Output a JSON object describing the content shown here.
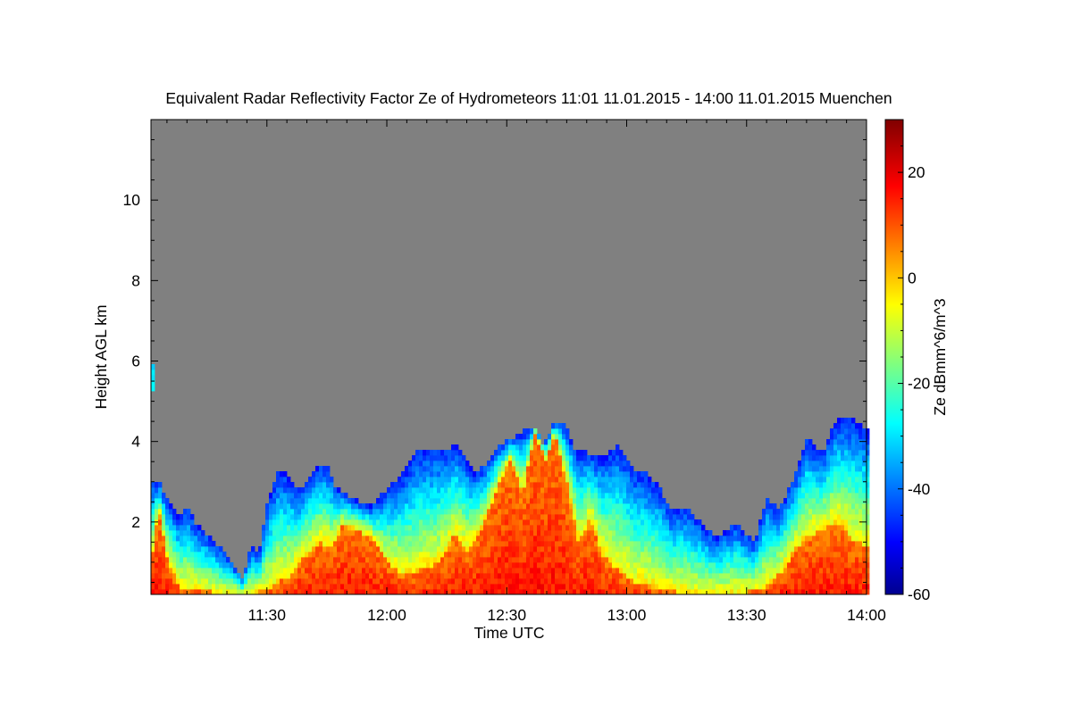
{
  "chart_data": {
    "type": "heatmap",
    "title": "Equivalent Radar Reflectivity Factor Ze of Hydrometeors   11:01 11.01.2015 - 14:00 11.01.2015 Muenchen",
    "xlabel": "Time UTC",
    "ylabel": "Height AGL km",
    "colorbar_label": "Ze dBmm^6/m^3",
    "x_range_minutes_utc": [
      661,
      840
    ],
    "y_range_km": [
      0.2,
      12.0
    ],
    "x_ticks": [
      {
        "value": 690,
        "label": "11:30"
      },
      {
        "value": 720,
        "label": "12:00"
      },
      {
        "value": 750,
        "label": "12:30"
      },
      {
        "value": 780,
        "label": "13:00"
      },
      {
        "value": 810,
        "label": "13:30"
      },
      {
        "value": 840,
        "label": "14:00"
      }
    ],
    "y_ticks": [
      {
        "value": 2,
        "label": "2"
      },
      {
        "value": 4,
        "label": "4"
      },
      {
        "value": 6,
        "label": "6"
      },
      {
        "value": 8,
        "label": "8"
      },
      {
        "value": 10,
        "label": "10"
      }
    ],
    "colorbar_range": [
      -60,
      30
    ],
    "colorbar_ticks": [
      {
        "value": 20,
        "label": "20"
      },
      {
        "value": 0,
        "label": "0"
      },
      {
        "value": -20,
        "label": "-20"
      },
      {
        "value": -40,
        "label": "-40"
      },
      {
        "value": -60,
        "label": "-60"
      }
    ],
    "colormap": "jet",
    "background_color": "#808080",
    "echo_top_profile_km": [
      [
        661,
        3.1
      ],
      [
        662,
        3.0
      ],
      [
        663,
        3.0
      ],
      [
        665,
        2.6
      ],
      [
        668,
        2.1
      ],
      [
        670,
        2.4
      ],
      [
        672,
        2.0
      ],
      [
        676,
        1.6
      ],
      [
        680,
        1.2
      ],
      [
        684,
        0.6
      ],
      [
        686,
        1.4
      ],
      [
        688,
        1.2
      ],
      [
        690,
        2.4
      ],
      [
        693,
        3.3
      ],
      [
        696,
        3.1
      ],
      [
        698,
        2.8
      ],
      [
        702,
        3.3
      ],
      [
        705,
        3.5
      ],
      [
        707,
        2.9
      ],
      [
        711,
        2.6
      ],
      [
        716,
        2.4
      ],
      [
        720,
        2.8
      ],
      [
        724,
        3.2
      ],
      [
        728,
        3.8
      ],
      [
        733,
        3.8
      ],
      [
        738,
        3.9
      ],
      [
        742,
        3.2
      ],
      [
        745,
        3.5
      ],
      [
        748,
        3.9
      ],
      [
        753,
        4.2
      ],
      [
        757,
        4.4
      ],
      [
        759,
        3.9
      ],
      [
        762,
        4.5
      ],
      [
        765,
        4.4
      ],
      [
        767,
        3.8
      ],
      [
        771,
        3.7
      ],
      [
        774,
        3.6
      ],
      [
        778,
        3.9
      ],
      [
        782,
        3.3
      ],
      [
        785,
        3.2
      ],
      [
        788,
        2.9
      ],
      [
        791,
        2.3
      ],
      [
        795,
        2.4
      ],
      [
        799,
        1.9
      ],
      [
        803,
        1.6
      ],
      [
        807,
        2.0
      ],
      [
        812,
        1.5
      ],
      [
        815,
        2.6
      ],
      [
        818,
        2.3
      ],
      [
        822,
        3.1
      ],
      [
        825,
        4.1
      ],
      [
        829,
        3.7
      ],
      [
        832,
        4.5
      ],
      [
        836,
        4.6
      ],
      [
        840,
        4.3
      ]
    ],
    "core_profile_km": [
      [
        661,
        1.0
      ],
      [
        663,
        2.3
      ],
      [
        665,
        1.1
      ],
      [
        668,
        0.4
      ],
      [
        680,
        0.2
      ],
      [
        684,
        0.2
      ],
      [
        690,
        0.3
      ],
      [
        696,
        0.7
      ],
      [
        700,
        1.2
      ],
      [
        703,
        1.5
      ],
      [
        706,
        1.4
      ],
      [
        709,
        1.9
      ],
      [
        713,
        1.8
      ],
      [
        716,
        1.6
      ],
      [
        720,
        1.0
      ],
      [
        724,
        0.7
      ],
      [
        728,
        0.8
      ],
      [
        733,
        1.0
      ],
      [
        737,
        1.7
      ],
      [
        740,
        1.3
      ],
      [
        744,
        1.9
      ],
      [
        748,
        2.9
      ],
      [
        751,
        3.6
      ],
      [
        754,
        2.7
      ],
      [
        757,
        4.2
      ],
      [
        760,
        3.5
      ],
      [
        762,
        4.2
      ],
      [
        765,
        3.0
      ],
      [
        768,
        1.5
      ],
      [
        771,
        2.1
      ],
      [
        774,
        1.2
      ],
      [
        778,
        0.8
      ],
      [
        782,
        0.5
      ],
      [
        786,
        0.4
      ],
      [
        790,
        0.3
      ],
      [
        797,
        0.2
      ],
      [
        808,
        0.2
      ],
      [
        815,
        0.4
      ],
      [
        819,
        0.8
      ],
      [
        822,
        1.3
      ],
      [
        825,
        1.6
      ],
      [
        829,
        1.8
      ],
      [
        833,
        2.0
      ],
      [
        836,
        1.6
      ],
      [
        840,
        1.4
      ]
    ],
    "elevated_layer_km": {
      "x": [
        661,
        662
      ],
      "y": [
        5.3,
        5.9
      ]
    }
  }
}
